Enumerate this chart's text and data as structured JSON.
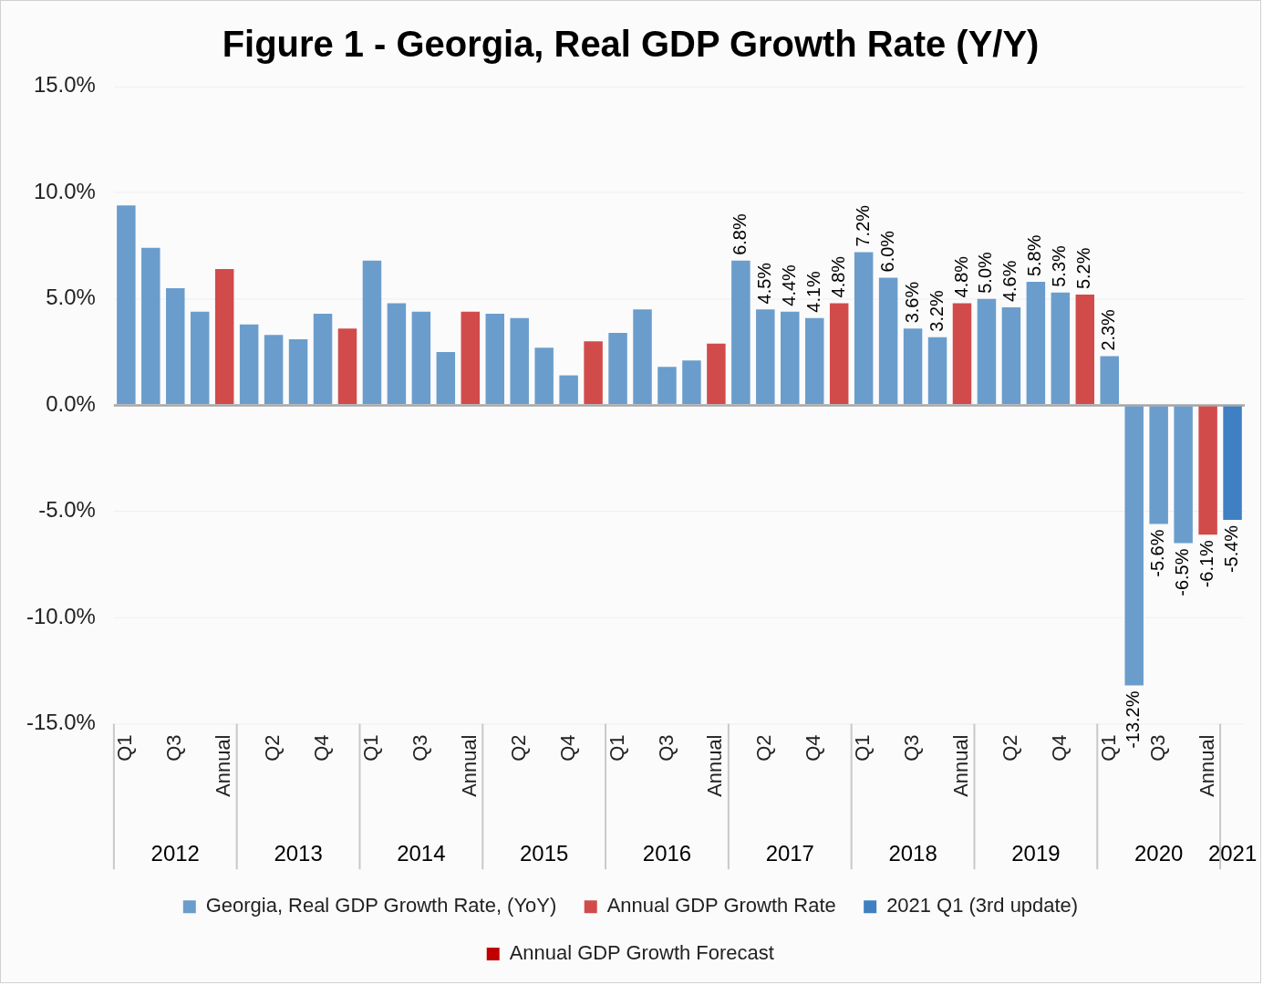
{
  "chart_data": {
    "type": "bar",
    "title": "Figure 1 - Georgia, Real GDP Growth Rate (Y/Y)",
    "categories": [
      "Q1",
      null,
      "Q3",
      null,
      "Annual",
      null,
      "Q2",
      null,
      "Q4",
      null,
      "Q1",
      null,
      "Q3",
      null,
      "Annual",
      null,
      "Q2",
      null,
      "Q4",
      null,
      "Q1",
      null,
      "Q3",
      null,
      "Annual",
      null,
      "Q2",
      null,
      "Q4",
      null,
      "Q1",
      null,
      "Q3",
      null,
      "Annual",
      null,
      "Q2",
      null,
      "Q4",
      null,
      "Q1",
      null,
      "Q3",
      null,
      "Annual",
      null
    ],
    "series": [
      {
        "name": "Georgia, Real GDP Growth Rate, (YoY)",
        "color": "#6a9dcc",
        "values": [
          9.4,
          7.4,
          5.5,
          4.4,
          null,
          3.8,
          3.3,
          3.1,
          4.3,
          null,
          6.8,
          4.8,
          4.4,
          2.5,
          null,
          4.3,
          4.1,
          2.7,
          1.4,
          null,
          3.4,
          4.5,
          1.8,
          2.1,
          null,
          6.8,
          4.5,
          4.4,
          4.1,
          null,
          7.2,
          6.0,
          3.6,
          3.2,
          null,
          5.0,
          4.6,
          5.8,
          5.3,
          null,
          2.3,
          -13.2,
          -5.6,
          -6.5,
          null,
          null
        ],
        "value_labels": [
          null,
          null,
          null,
          null,
          null,
          null,
          null,
          null,
          null,
          null,
          null,
          null,
          null,
          null,
          null,
          null,
          null,
          null,
          null,
          null,
          null,
          null,
          null,
          null,
          null,
          "6.8%",
          "4.5%",
          "4.4%",
          "4.1%",
          null,
          "7.2%",
          "6.0%",
          "3.6%",
          "3.2%",
          null,
          "5.0%",
          "4.6%",
          "5.8%",
          "5.3%",
          null,
          "2.3%",
          "-13.2%",
          "-5.6%",
          "-6.5%",
          null,
          null
        ]
      },
      {
        "name": "Annual GDP Growth Rate",
        "color": "#d24b4b",
        "values": [
          null,
          null,
          null,
          null,
          6.4,
          null,
          null,
          null,
          null,
          3.6,
          null,
          null,
          null,
          null,
          4.4,
          null,
          null,
          null,
          null,
          3.0,
          null,
          null,
          null,
          null,
          2.9,
          null,
          null,
          null,
          null,
          4.8,
          null,
          null,
          null,
          null,
          4.8,
          null,
          null,
          null,
          null,
          5.2,
          null,
          null,
          null,
          null,
          -6.1,
          null
        ],
        "value_labels": [
          null,
          null,
          null,
          null,
          null,
          null,
          null,
          null,
          null,
          null,
          null,
          null,
          null,
          null,
          null,
          null,
          null,
          null,
          null,
          null,
          null,
          null,
          null,
          null,
          null,
          null,
          null,
          null,
          null,
          "4.8%",
          null,
          null,
          null,
          null,
          "4.8%",
          null,
          null,
          null,
          null,
          "5.2%",
          null,
          null,
          null,
          null,
          "-6.1%",
          null
        ]
      },
      {
        "name": "2021 Q1 (3rd update)",
        "color": "#3f80c2",
        "values": [
          null,
          null,
          null,
          null,
          null,
          null,
          null,
          null,
          null,
          null,
          null,
          null,
          null,
          null,
          null,
          null,
          null,
          null,
          null,
          null,
          null,
          null,
          null,
          null,
          null,
          null,
          null,
          null,
          null,
          null,
          null,
          null,
          null,
          null,
          null,
          null,
          null,
          null,
          null,
          null,
          null,
          null,
          null,
          null,
          null,
          -5.4
        ],
        "value_labels": [
          null,
          null,
          null,
          null,
          null,
          null,
          null,
          null,
          null,
          null,
          null,
          null,
          null,
          null,
          null,
          null,
          null,
          null,
          null,
          null,
          null,
          null,
          null,
          null,
          null,
          null,
          null,
          null,
          null,
          null,
          null,
          null,
          null,
          null,
          null,
          null,
          null,
          null,
          null,
          null,
          null,
          null,
          null,
          null,
          null,
          "-5.4%"
        ]
      },
      {
        "name": "Annual GDP Growth Forecast",
        "color": "#c00000",
        "values": [
          null,
          null,
          null,
          null,
          null,
          null,
          null,
          null,
          null,
          null,
          null,
          null,
          null,
          null,
          null,
          null,
          null,
          null,
          null,
          null,
          null,
          null,
          null,
          null,
          null,
          null,
          null,
          null,
          null,
          null,
          null,
          null,
          null,
          null,
          null,
          null,
          null,
          null,
          null,
          null,
          null,
          null,
          null,
          null,
          null,
          null
        ]
      }
    ],
    "ylim": [
      -15,
      15
    ],
    "yticks": [
      {
        "value": -15,
        "label": "-15.0%"
      },
      {
        "value": -10,
        "label": "-10.0%"
      },
      {
        "value": -5,
        "label": "-5.0%"
      },
      {
        "value": 0,
        "label": "0.0%"
      },
      {
        "value": 5,
        "label": "5.0%"
      },
      {
        "value": 10,
        "label": "10.0%"
      },
      {
        "value": 15,
        "label": "15.0%"
      }
    ],
    "annotations": [
      "2012",
      "2013",
      "2014",
      "2015",
      "2016",
      "2017",
      "2018",
      "2019",
      "2020",
      "2021"
    ],
    "grid": "y",
    "legend": "bottom"
  }
}
